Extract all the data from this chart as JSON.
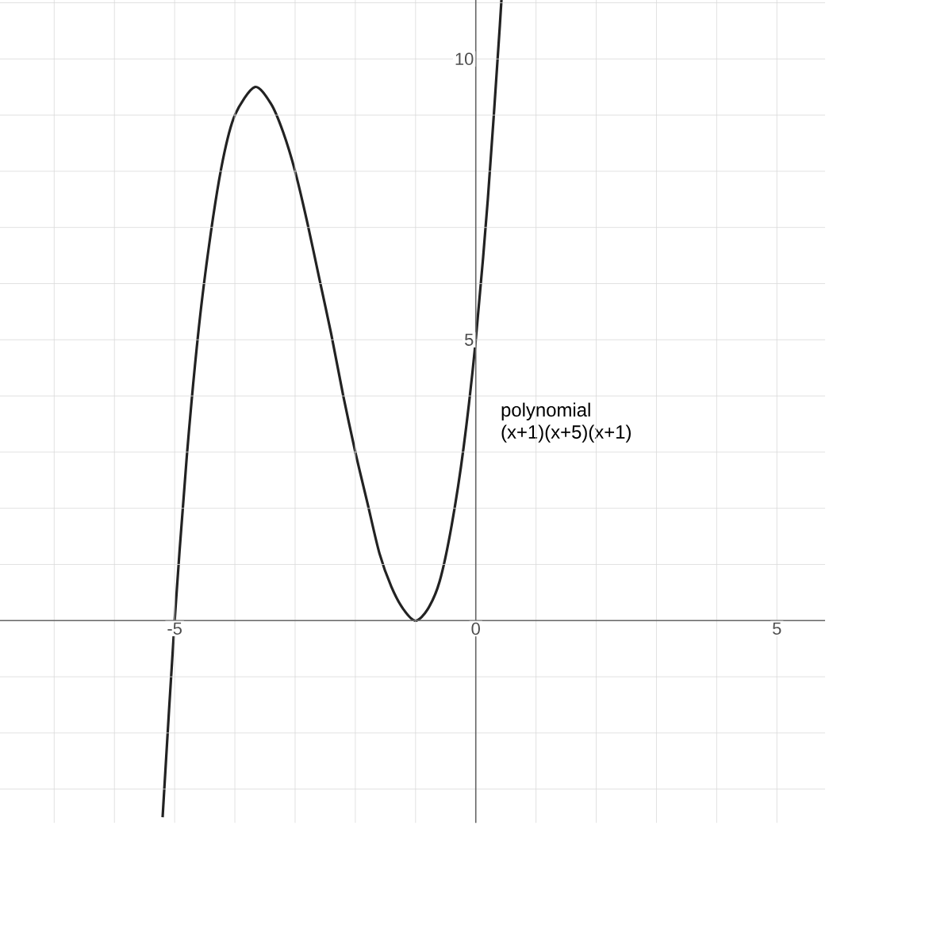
{
  "chart_data": {
    "type": "line",
    "x": [
      -5.2,
      -5,
      -4.8,
      -4.6,
      -4.4,
      -4.2,
      -4,
      -3.67,
      -3.4,
      -3.2,
      -3,
      -2.8,
      -2.6,
      -2.4,
      -2.2,
      -2,
      -1.8,
      -1.6,
      -1.4,
      -1.2,
      -1,
      -0.8,
      -0.6,
      -0.4,
      -0.2,
      0,
      0.2,
      0.4,
      0.5
    ],
    "series": [
      {
        "color": "#222222",
        "values": [
          -3.5,
          0,
          2.9,
          5.2,
          6.9,
          8.2,
          9,
          9.5,
          9.2,
          8.7,
          8,
          7.1,
          6.1,
          5.1,
          4,
          3,
          2.1,
          1.2,
          0.6,
          0.2,
          0,
          0.2,
          0.7,
          1.7,
          3.1,
          5,
          7.5,
          10.6,
          12.4
        ]
      }
    ],
    "annotations": [
      "polynomial",
      "(x+1)(x+5)(x+1)"
    ],
    "xlim": [
      -7.9,
      5.8
    ],
    "ylim": [
      -3.6,
      12.7
    ],
    "xticks": [
      {
        "value": -7,
        "label": null
      },
      {
        "value": -6,
        "label": null
      },
      -5,
      {
        "value": -4,
        "label": null
      },
      {
        "value": -3,
        "label": null
      },
      {
        "value": -2,
        "label": null
      },
      {
        "value": -1,
        "label": null
      },
      0,
      {
        "value": 1,
        "label": null
      },
      {
        "value": 2,
        "label": null
      },
      {
        "value": 3,
        "label": null
      },
      {
        "value": 4,
        "label": null
      },
      5
    ],
    "yticks": [
      {
        "value": -3,
        "label": null
      },
      {
        "value": -2,
        "label": null
      },
      {
        "value": -1,
        "label": null
      },
      {
        "value": 0,
        "label": null
      },
      {
        "value": 1,
        "label": null
      },
      {
        "value": 2,
        "label": null
      },
      {
        "value": 3,
        "label": null
      },
      {
        "value": 4,
        "label": null
      },
      5,
      {
        "value": 6,
        "label": null
      },
      {
        "value": 7,
        "label": null
      },
      {
        "value": 8,
        "label": null
      },
      {
        "value": 9,
        "label": null
      },
      10,
      {
        "value": 11,
        "label": null
      },
      {
        "value": 12,
        "label": null
      }
    ],
    "grid": true,
    "marker": "none",
    "line_style": "solid"
  }
}
